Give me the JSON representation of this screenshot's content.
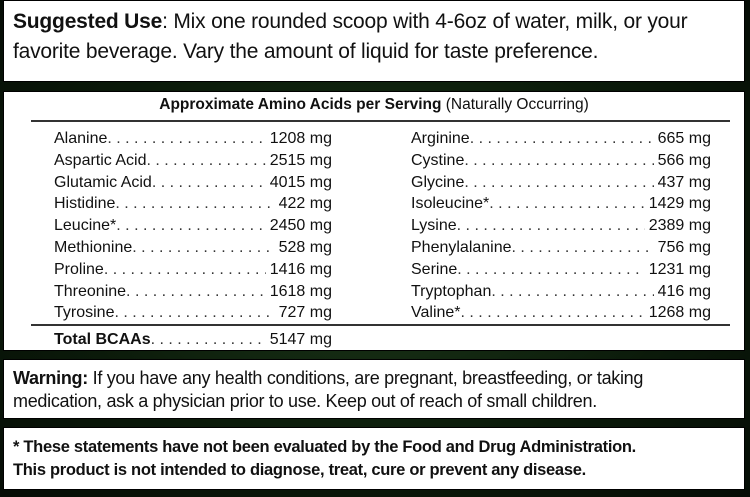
{
  "suggested_use": {
    "label": "Suggested Use",
    "text": ": Mix one rounded scoop with 4-6oz of water, milk, or your favorite beverage. Vary the amount of liquid for taste preference."
  },
  "amino_table": {
    "title_bold": "Approximate Amino Acids per Serving",
    "title_note": " (Naturally Occurring)",
    "left": [
      {
        "name": "Alanine",
        "value": "1208 mg"
      },
      {
        "name": "Aspartic Acid",
        "value": "2515 mg"
      },
      {
        "name": "Glutamic Acid",
        "value": "4015 mg"
      },
      {
        "name": "Histidine",
        "value": "422 mg"
      },
      {
        "name": "Leucine*",
        "value": "2450 mg"
      },
      {
        "name": "Methionine",
        "value": "528 mg"
      },
      {
        "name": "Proline",
        "value": "1416 mg"
      },
      {
        "name": "Threonine",
        "value": "1618 mg"
      },
      {
        "name": "Tyrosine",
        "value": "727 mg"
      }
    ],
    "right": [
      {
        "name": "Arginine",
        "value": "665 mg"
      },
      {
        "name": "Cystine",
        "value": "566 mg"
      },
      {
        "name": "Glycine",
        "value": "437 mg"
      },
      {
        "name": "Isoleucine*",
        "value": "1429 mg"
      },
      {
        "name": "Lysine",
        "value": "2389 mg"
      },
      {
        "name": "Phenylalanine",
        "value": "756 mg"
      },
      {
        "name": "Serine",
        "value": "1231 mg"
      },
      {
        "name": "Tryptophan",
        "value": "416 mg"
      },
      {
        "name": "Valine*",
        "value": "1268 mg"
      }
    ],
    "total": {
      "name": "Total BCAAs",
      "value": "5147 mg"
    }
  },
  "warning": {
    "label": "Warning:",
    "text": " If you have any health conditions, are pregnant, breastfeeding, or taking medication, ask a physician prior to use. Keep out of reach of small children."
  },
  "disclaimer": {
    "line1": "* These statements have not been evaluated by the Food and Drug Administration.",
    "line2": "This product is not intended to diagnose, treat, cure or prevent any disease."
  }
}
